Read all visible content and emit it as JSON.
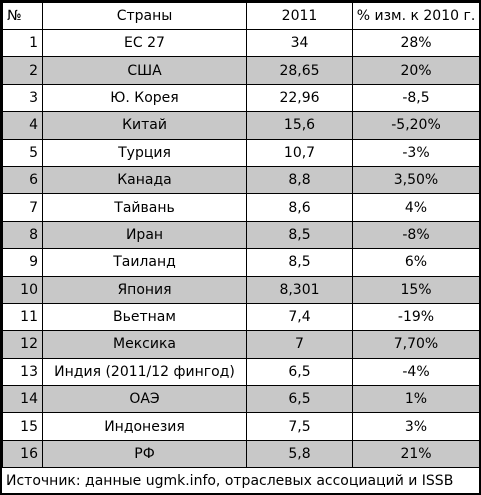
{
  "header": {
    "num": "№",
    "country": "Страны",
    "year": "2011",
    "change": "% изм. к 2010 г."
  },
  "rows": [
    {
      "num": "1",
      "country": "ЕС 27",
      "value": "34",
      "change": "28%",
      "shaded": false
    },
    {
      "num": "2",
      "country": "США",
      "value": "28,65",
      "change": "20%",
      "shaded": true
    },
    {
      "num": "3",
      "country": "Ю. Корея",
      "value": "22,96",
      "change": "-8,5",
      "shaded": false
    },
    {
      "num": "4",
      "country": "Китай",
      "value": "15,6",
      "change": "-5,20%",
      "shaded": true
    },
    {
      "num": "5",
      "country": "Турция",
      "value": "10,7",
      "change": "-3%",
      "shaded": false
    },
    {
      "num": "6",
      "country": "Канада",
      "value": "8,8",
      "change": "3,50%",
      "shaded": true
    },
    {
      "num": "7",
      "country": "Тайвань",
      "value": "8,6",
      "change": "4%",
      "shaded": false
    },
    {
      "num": "8",
      "country": "Иран",
      "value": "8,5",
      "change": "-8%",
      "shaded": true
    },
    {
      "num": "9",
      "country": "Таиланд",
      "value": "8,5",
      "change": "6%",
      "shaded": false
    },
    {
      "num": "10",
      "country": "Япония",
      "value": "8,301",
      "change": "15%",
      "shaded": true
    },
    {
      "num": "11",
      "country": "Вьетнам",
      "value": "7,4",
      "change": "-19%",
      "shaded": false
    },
    {
      "num": "12",
      "country": "Мексика",
      "value": "7",
      "change": "7,70%",
      "shaded": true
    },
    {
      "num": "13",
      "country": "Индия (2011/12 фингод)",
      "value": "6,5",
      "change": "-4%",
      "shaded": false
    },
    {
      "num": "14",
      "country": "ОАЭ",
      "value": "6,5",
      "change": "1%",
      "shaded": true
    },
    {
      "num": "15",
      "country": "Индонезия",
      "value": "7,5",
      "change": "3%",
      "shaded": false
    },
    {
      "num": "16",
      "country": "РФ",
      "value": "5,8",
      "change": "21%",
      "shaded": true
    }
  ],
  "source": "Источник: данные ugmk.info, отраслевых ассоциаций и ISSB",
  "colors": {
    "shaded_row": "#c8c8c8",
    "border": "#000000"
  }
}
